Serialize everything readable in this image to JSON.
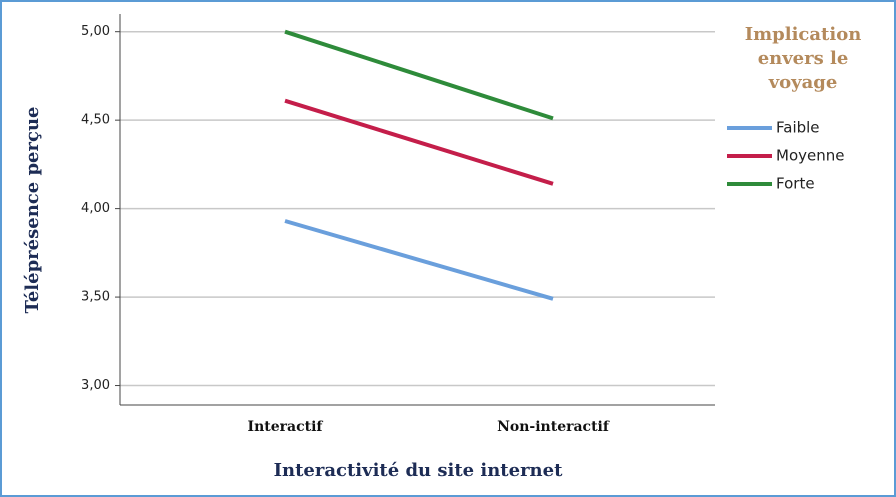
{
  "chart_data": {
    "type": "line",
    "x_label": "Interactivité du site internet",
    "y_label": "Téléprésence perçue",
    "legend_title": "Implication envers le voyage",
    "legend_position": "right",
    "categories": [
      "Interactif",
      "Non-interactif"
    ],
    "series": [
      {
        "name": "Faible",
        "color": "#6a9fdc",
        "values": [
          3.93,
          3.49
        ]
      },
      {
        "name": "Moyenne",
        "color": "#c41e4a",
        "values": [
          4.61,
          4.14
        ]
      },
      {
        "name": "Forte",
        "color": "#2e8b3a",
        "values": [
          5.0,
          4.51
        ]
      }
    ],
    "ylim": [
      2.89,
      5.1
    ],
    "yticks": [
      {
        "value": 3,
        "label": "3,00"
      },
      {
        "value": 3.5,
        "label": "3,50"
      },
      {
        "value": 4,
        "label": "4,00"
      },
      {
        "value": 4.5,
        "label": "4,50"
      },
      {
        "value": 5,
        "label": "5,00"
      }
    ],
    "grid": true
  }
}
